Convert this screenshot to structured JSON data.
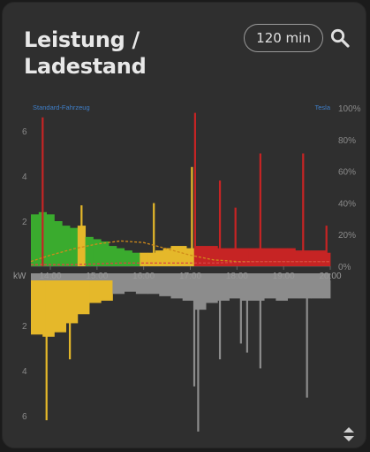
{
  "header": {
    "title_line1": "Leistung /",
    "title_line2": "Ladestand",
    "range_label": "120 min"
  },
  "icons": {
    "search": "search-icon",
    "sort": "sort-arrows-icon"
  },
  "colors": {
    "background": "#2f2f2f",
    "green": "#3aab2e",
    "yellow": "#e5b82a",
    "red": "#c62424",
    "gray": "#8c8c8c",
    "link_blue": "#3f7fc9"
  },
  "chart_data": {
    "type": "area",
    "legend": {
      "left": "Standard-Fahrzeug",
      "right": "Tesla"
    },
    "x_axis": {
      "unit_label": "kW",
      "ticks": [
        "14:00",
        "15:00",
        "16:00",
        "17:00",
        "18:00",
        "19:00",
        "20:00"
      ],
      "range": [
        "13:35",
        "20:00"
      ]
    },
    "y_axis_top": {
      "ticks": [
        "2",
        "4",
        "6"
      ],
      "range": [
        0,
        7
      ]
    },
    "y_axis_bottom": {
      "ticks": [
        "2",
        "4",
        "6"
      ],
      "range": [
        0,
        7
      ]
    },
    "y_axis_right": {
      "ticks": [
        "0%",
        "20%",
        "40%",
        "60%",
        "80%",
        "100%"
      ],
      "range": [
        0,
        100
      ]
    },
    "production_kw": [
      {
        "t": "13:35",
        "v": 2.3,
        "c": "green"
      },
      {
        "t": "13:45",
        "v": 2.4,
        "c": "green"
      },
      {
        "t": "13:55",
        "v": 2.3,
        "c": "green"
      },
      {
        "t": "14:05",
        "v": 2.0,
        "c": "green"
      },
      {
        "t": "14:15",
        "v": 1.8,
        "c": "green"
      },
      {
        "t": "14:25",
        "v": 1.7,
        "c": "green"
      },
      {
        "t": "14:35",
        "v": 1.8,
        "c": "yellow"
      },
      {
        "t": "14:45",
        "v": 1.3,
        "c": "green"
      },
      {
        "t": "14:55",
        "v": 1.2,
        "c": "green"
      },
      {
        "t": "15:05",
        "v": 1.1,
        "c": "green"
      },
      {
        "t": "15:15",
        "v": 0.9,
        "c": "green"
      },
      {
        "t": "15:25",
        "v": 0.8,
        "c": "green"
      },
      {
        "t": "15:35",
        "v": 0.7,
        "c": "green"
      },
      {
        "t": "15:45",
        "v": 0.6,
        "c": "green"
      },
      {
        "t": "15:55",
        "v": 0.6,
        "c": "yellow"
      },
      {
        "t": "16:05",
        "v": 0.6,
        "c": "yellow"
      },
      {
        "t": "16:15",
        "v": 0.7,
        "c": "yellow"
      },
      {
        "t": "16:25",
        "v": 0.8,
        "c": "yellow"
      },
      {
        "t": "16:35",
        "v": 0.9,
        "c": "yellow"
      },
      {
        "t": "16:45",
        "v": 0.9,
        "c": "yellow"
      },
      {
        "t": "16:55",
        "v": 0.8,
        "c": "yellow"
      },
      {
        "t": "17:05",
        "v": 0.9,
        "c": "red"
      },
      {
        "t": "17:15",
        "v": 0.9,
        "c": "red"
      },
      {
        "t": "17:25",
        "v": 0.9,
        "c": "red"
      },
      {
        "t": "17:35",
        "v": 0.8,
        "c": "red"
      },
      {
        "t": "17:45",
        "v": 0.8,
        "c": "red"
      },
      {
        "t": "17:55",
        "v": 0.8,
        "c": "red"
      },
      {
        "t": "18:05",
        "v": 0.8,
        "c": "red"
      },
      {
        "t": "18:15",
        "v": 0.8,
        "c": "red"
      },
      {
        "t": "18:25",
        "v": 0.8,
        "c": "red"
      },
      {
        "t": "18:35",
        "v": 0.8,
        "c": "red"
      },
      {
        "t": "18:45",
        "v": 0.8,
        "c": "red"
      },
      {
        "t": "18:55",
        "v": 0.8,
        "c": "red"
      },
      {
        "t": "19:05",
        "v": 0.8,
        "c": "red"
      },
      {
        "t": "19:15",
        "v": 0.7,
        "c": "red"
      },
      {
        "t": "19:25",
        "v": 0.7,
        "c": "red"
      },
      {
        "t": "19:35",
        "v": 0.7,
        "c": "red"
      },
      {
        "t": "19:45",
        "v": 0.7,
        "c": "red"
      },
      {
        "t": "19:55",
        "v": 0.6,
        "c": "red"
      },
      {
        "t": "20:00",
        "v": 0.6,
        "c": "red"
      }
    ],
    "production_spikes_kw": [
      {
        "t": "13:50",
        "v": 6.6,
        "c": "red"
      },
      {
        "t": "14:40",
        "v": 2.7,
        "c": "yellow"
      },
      {
        "t": "16:13",
        "v": 2.8,
        "c": "yellow"
      },
      {
        "t": "17:02",
        "v": 4.4,
        "c": "yellow"
      },
      {
        "t": "17:06",
        "v": 6.8,
        "c": "red"
      },
      {
        "t": "17:38",
        "v": 3.8,
        "c": "red"
      },
      {
        "t": "17:58",
        "v": 2.6,
        "c": "red"
      },
      {
        "t": "18:30",
        "v": 5.0,
        "c": "red"
      },
      {
        "t": "19:25",
        "v": 5.0,
        "c": "red"
      },
      {
        "t": "19:55",
        "v": 1.8,
        "c": "red"
      }
    ],
    "consumption_kw": [
      {
        "t": "13:35",
        "v": 2.4,
        "c": "yellow"
      },
      {
        "t": "13:50",
        "v": 2.5,
        "c": "yellow"
      },
      {
        "t": "14:05",
        "v": 2.3,
        "c": "yellow"
      },
      {
        "t": "14:20",
        "v": 1.9,
        "c": "yellow"
      },
      {
        "t": "14:35",
        "v": 1.5,
        "c": "yellow"
      },
      {
        "t": "14:50",
        "v": 1.0,
        "c": "yellow"
      },
      {
        "t": "15:05",
        "v": 0.9,
        "c": "yellow"
      },
      {
        "t": "15:20",
        "v": 0.6,
        "c": "gray"
      },
      {
        "t": "15:35",
        "v": 0.5,
        "c": "gray"
      },
      {
        "t": "15:50",
        "v": 0.6,
        "c": "gray"
      },
      {
        "t": "16:05",
        "v": 0.6,
        "c": "gray"
      },
      {
        "t": "16:20",
        "v": 0.7,
        "c": "gray"
      },
      {
        "t": "16:35",
        "v": 0.8,
        "c": "gray"
      },
      {
        "t": "16:50",
        "v": 0.9,
        "c": "gray"
      },
      {
        "t": "17:05",
        "v": 1.3,
        "c": "gray"
      },
      {
        "t": "17:20",
        "v": 1.0,
        "c": "gray"
      },
      {
        "t": "17:35",
        "v": 0.9,
        "c": "gray"
      },
      {
        "t": "17:50",
        "v": 0.8,
        "c": "gray"
      },
      {
        "t": "18:05",
        "v": 0.9,
        "c": "gray"
      },
      {
        "t": "18:20",
        "v": 0.9,
        "c": "gray"
      },
      {
        "t": "18:35",
        "v": 0.8,
        "c": "gray"
      },
      {
        "t": "18:50",
        "v": 0.9,
        "c": "gray"
      },
      {
        "t": "19:05",
        "v": 0.8,
        "c": "gray"
      },
      {
        "t": "19:20",
        "v": 0.8,
        "c": "gray"
      },
      {
        "t": "19:35",
        "v": 0.8,
        "c": "gray"
      },
      {
        "t": "19:50",
        "v": 0.8,
        "c": "gray"
      },
      {
        "t": "20:00",
        "v": 0.8,
        "c": "gray"
      }
    ],
    "consumption_spikes_kw": [
      {
        "t": "13:55",
        "v": 6.2,
        "c": "yellow"
      },
      {
        "t": "14:25",
        "v": 3.5,
        "c": "yellow"
      },
      {
        "t": "17:05",
        "v": 4.7,
        "c": "gray"
      },
      {
        "t": "17:10",
        "v": 6.7,
        "c": "gray"
      },
      {
        "t": "17:38",
        "v": 3.5,
        "c": "gray"
      },
      {
        "t": "18:05",
        "v": 2.8,
        "c": "gray"
      },
      {
        "t": "18:13",
        "v": 3.2,
        "c": "gray"
      },
      {
        "t": "18:30",
        "v": 3.9,
        "c": "gray"
      },
      {
        "t": "19:30",
        "v": 5.2,
        "c": "gray"
      }
    ],
    "soc_standard_percent": [
      {
        "t": "13:35",
        "v": 3
      },
      {
        "t": "14:00",
        "v": 7
      },
      {
        "t": "14:30",
        "v": 11
      },
      {
        "t": "15:00",
        "v": 14
      },
      {
        "t": "15:30",
        "v": 16
      },
      {
        "t": "16:00",
        "v": 15
      },
      {
        "t": "16:30",
        "v": 11
      },
      {
        "t": "17:00",
        "v": 7
      },
      {
        "t": "17:30",
        "v": 4
      },
      {
        "t": "18:00",
        "v": 3
      },
      {
        "t": "19:00",
        "v": 3
      },
      {
        "t": "20:00",
        "v": 3
      }
    ],
    "soc_tesla_percent": [
      {
        "t": "13:35",
        "v": 1
      },
      {
        "t": "14:30",
        "v": 1
      },
      {
        "t": "15:30",
        "v": 2
      },
      {
        "t": "16:30",
        "v": 2
      },
      {
        "t": "17:30",
        "v": 2
      },
      {
        "t": "18:30",
        "v": 3
      },
      {
        "t": "19:30",
        "v": 3
      },
      {
        "t": "20:00",
        "v": 3
      }
    ]
  }
}
